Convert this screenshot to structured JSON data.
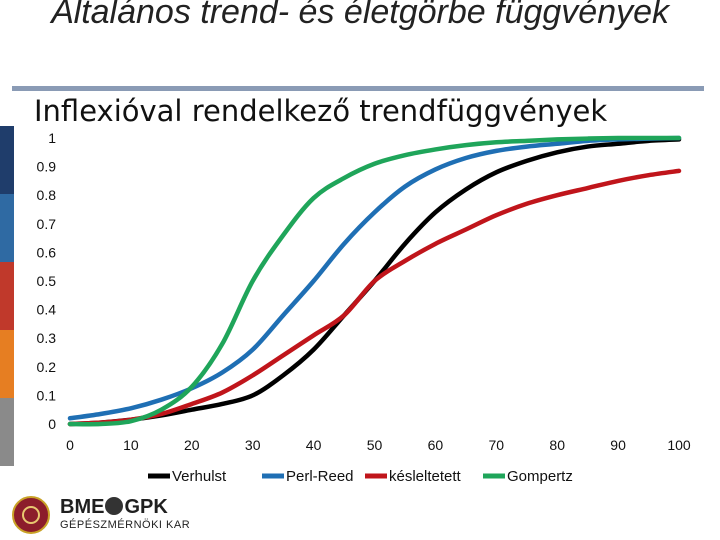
{
  "slide": {
    "title": "Általános trend- és életgörbe függvények",
    "subtitle": "Inflexióval rendelkező trendfüggvények",
    "sidebar_colors": [
      "#1f3d6b",
      "#2f6aa3",
      "#c0392b",
      "#e67e22",
      "#8a8a8a"
    ]
  },
  "logo": {
    "name": "BME GPK",
    "text_main": "BME",
    "text_main2": "GPK",
    "text_sub": "GÉPÉSZMÉRNÖKI KAR"
  },
  "chart_data": {
    "type": "line",
    "title": "",
    "xlabel": "",
    "ylabel": "",
    "xlim": [
      0,
      100
    ],
    "ylim": [
      0,
      1
    ],
    "xticks": [
      "0",
      "10",
      "20",
      "30",
      "40",
      "50",
      "60",
      "70",
      "80",
      "90",
      "100"
    ],
    "yticks": [
      "0",
      "0.1",
      "0.2",
      "0.3",
      "0.4",
      "0.5",
      "0.6",
      "0.7",
      "0.8",
      "0.9",
      "1"
    ],
    "grid": false,
    "legend_position": "bottom",
    "x": [
      0,
      5,
      10,
      15,
      20,
      25,
      30,
      35,
      40,
      45,
      50,
      55,
      60,
      65,
      70,
      75,
      80,
      85,
      90,
      95,
      100
    ],
    "series": [
      {
        "name": "Verhulst",
        "color": "#000000",
        "values": [
          0.0,
          0.005,
          0.015,
          0.03,
          0.05,
          0.07,
          0.1,
          0.17,
          0.26,
          0.38,
          0.5,
          0.63,
          0.74,
          0.82,
          0.88,
          0.92,
          0.95,
          0.97,
          0.98,
          0.99,
          0.995
        ]
      },
      {
        "name": "Perl-Reed",
        "color": "#1f6fb4",
        "values": [
          0.02,
          0.035,
          0.055,
          0.085,
          0.125,
          0.18,
          0.26,
          0.38,
          0.5,
          0.63,
          0.74,
          0.83,
          0.89,
          0.93,
          0.955,
          0.97,
          0.98,
          0.99,
          0.995,
          0.998,
          1.0
        ]
      },
      {
        "name": "késleltetett",
        "color": "#c0151b",
        "values": [
          0.0,
          0.005,
          0.015,
          0.035,
          0.07,
          0.11,
          0.17,
          0.24,
          0.31,
          0.38,
          0.5,
          0.57,
          0.63,
          0.68,
          0.73,
          0.77,
          0.8,
          0.825,
          0.85,
          0.87,
          0.885
        ]
      },
      {
        "name": "Gompertz",
        "color": "#1fa55a",
        "values": [
          0.0,
          0.0,
          0.01,
          0.05,
          0.13,
          0.28,
          0.5,
          0.66,
          0.79,
          0.86,
          0.91,
          0.94,
          0.96,
          0.975,
          0.985,
          0.99,
          0.995,
          0.998,
          1.0,
          1.0,
          1.0
        ]
      }
    ]
  }
}
